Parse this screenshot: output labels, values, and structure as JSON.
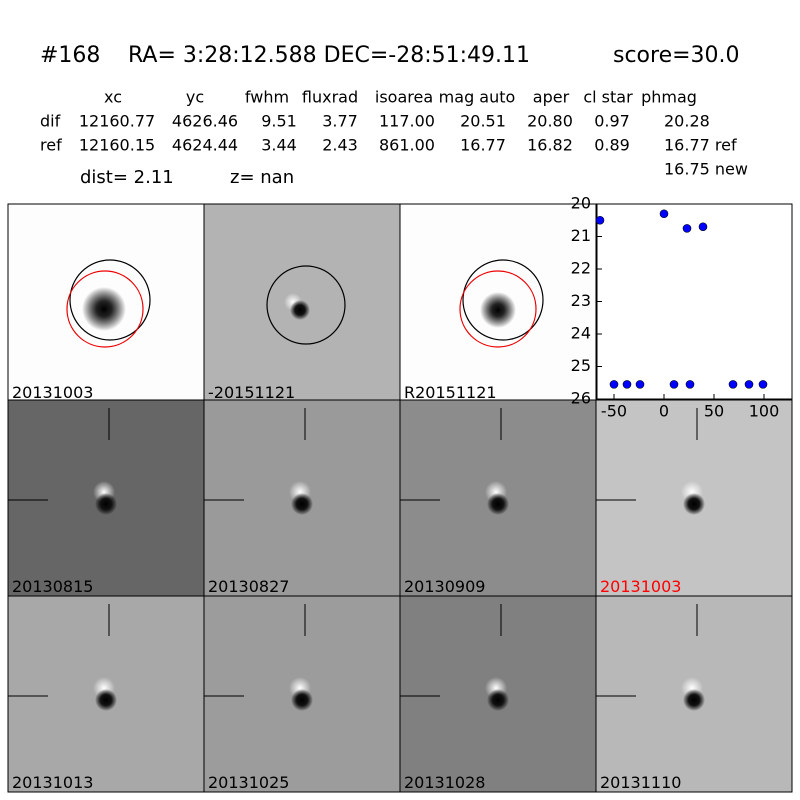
{
  "header": {
    "id": "#168",
    "coords": "RA= 3:28:12.588 DEC=-28:51:49.11",
    "score": "score=30.0"
  },
  "table": {
    "columns": [
      "xc",
      "yc",
      "fwhm",
      "fluxrad",
      "isoarea",
      "mag auto",
      "aper",
      "cl star",
      "phmag"
    ],
    "rows": [
      [
        "dif",
        "12160.77",
        "4626.46",
        "9.51",
        "3.77",
        "117.00",
        "20.51",
        "20.80",
        "0.97",
        "20.28"
      ],
      [
        "ref",
        "12160.15",
        "4624.44",
        "3.44",
        "2.43",
        "861.00",
        "16.77",
        "16.82",
        "0.89",
        "16.77 ref"
      ]
    ],
    "extra": "16.75 new"
  },
  "info": {
    "dist": "dist=  2.11",
    "z": "z=   nan"
  },
  "panels": [
    "20131003",
    "-20151121",
    "R20151121",
    "20130815",
    "20130827",
    "20130909",
    "20131003",
    "20131013",
    "20131025",
    "20131028",
    "20131110"
  ],
  "chart_data": {
    "type": "scatter",
    "x": [
      -64,
      0,
      23,
      39,
      -50,
      -37,
      -24,
      10,
      26,
      69,
      85,
      99
    ],
    "values": [
      20.5,
      20.3,
      20.75,
      20.7,
      25.55,
      25.55,
      25.55,
      25.55,
      25.55,
      25.55,
      25.55,
      25.55
    ],
    "color": "#0000ff",
    "xlim": [
      -67,
      128
    ],
    "xticks": [
      -50,
      0,
      50,
      100
    ],
    "ylim": [
      26,
      20
    ],
    "yticks": [
      20,
      21,
      22,
      23,
      24,
      25,
      26
    ]
  }
}
